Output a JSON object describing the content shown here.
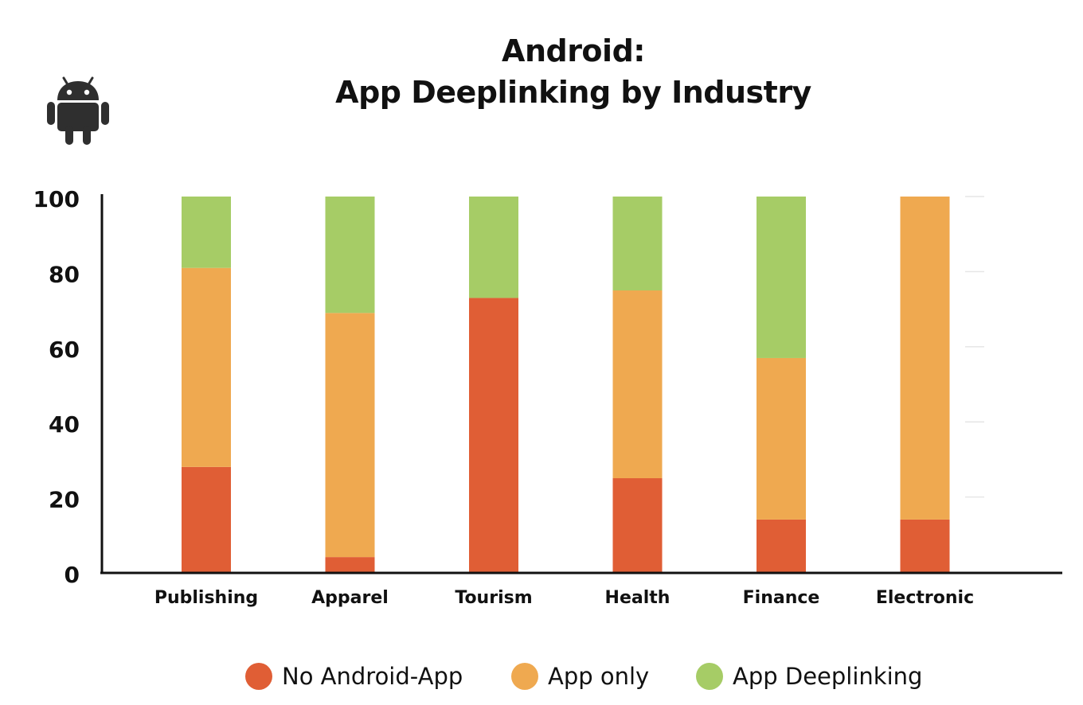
{
  "chart_data": {
    "type": "bar",
    "stacked": true,
    "title": [
      "Android:",
      "App Deeplinking by Industry"
    ],
    "xlabel": "",
    "ylabel": "",
    "categories": [
      "Publishing",
      "Apparel",
      "Tourism",
      "Health",
      "Finance",
      "Electronic"
    ],
    "series": [
      {
        "name": "No Android-App",
        "color": "#E05E35",
        "values": [
          28,
          4,
          73,
          25,
          14,
          14
        ]
      },
      {
        "name": "App only",
        "color": "#EFA950",
        "values": [
          53,
          65,
          0,
          50,
          43,
          86
        ]
      },
      {
        "name": "App Deeplinking",
        "color": "#A6CC66",
        "values": [
          19,
          31,
          27,
          25,
          43,
          0
        ]
      }
    ],
    "ylim": [
      0,
      100
    ],
    "yticks": [
      "0",
      "20",
      "40",
      "60",
      "80",
      "100"
    ],
    "grid": false,
    "legend_position": "bottom"
  },
  "icon": "android-icon",
  "colors": {
    "axis": "#111111",
    "text": "#111111",
    "faint_tick": "#E6E6E6"
  }
}
